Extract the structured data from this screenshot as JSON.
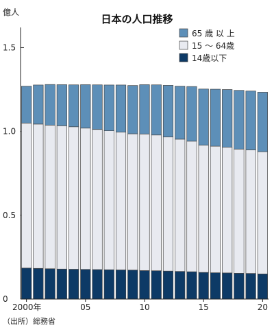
{
  "chart_data": {
    "type": "bar",
    "stacked": true,
    "title": "日本の人口推移",
    "ylabel": "億人",
    "xlabel": "",
    "ylim": [
      0,
      1.6
    ],
    "yticks": [
      0,
      0.5,
      1.0,
      1.5
    ],
    "ytick_labels": [
      "0",
      "0.5",
      "1.0",
      "1.5"
    ],
    "x": [
      2000,
      2001,
      2002,
      2003,
      2004,
      2005,
      2006,
      2007,
      2008,
      2009,
      2010,
      2011,
      2012,
      2013,
      2014,
      2015,
      2016,
      2017,
      2018,
      2019,
      2020
    ],
    "xtick_labels": [
      {
        "x": 2000,
        "label": "2000年"
      },
      {
        "x": 2005,
        "label": "05"
      },
      {
        "x": 2010,
        "label": "10"
      },
      {
        "x": 2015,
        "label": "15"
      },
      {
        "x": 2020,
        "label": "20"
      }
    ],
    "series": [
      {
        "name": "14歳以下",
        "color": "#0d3a66",
        "values": [
          0.185,
          0.183,
          0.181,
          0.179,
          0.178,
          0.177,
          0.176,
          0.175,
          0.174,
          0.173,
          0.17,
          0.169,
          0.167,
          0.165,
          0.163,
          0.159,
          0.157,
          0.156,
          0.154,
          0.153,
          0.15
        ]
      },
      {
        "name": "15 ～ 64歳",
        "color": "#e8eaf0",
        "values": [
          0.865,
          0.861,
          0.857,
          0.855,
          0.85,
          0.843,
          0.836,
          0.829,
          0.822,
          0.813,
          0.815,
          0.81,
          0.8,
          0.789,
          0.779,
          0.759,
          0.755,
          0.75,
          0.741,
          0.737,
          0.729
        ]
      },
      {
        "name": "65 歳 以 上",
        "color": "#5d8fb8",
        "values": [
          0.22,
          0.233,
          0.242,
          0.245,
          0.25,
          0.259,
          0.266,
          0.273,
          0.281,
          0.288,
          0.294,
          0.299,
          0.308,
          0.316,
          0.326,
          0.335,
          0.34,
          0.344,
          0.35,
          0.351,
          0.355
        ]
      }
    ],
    "legend_position": "top-right",
    "grid": false
  },
  "source_note": "（出所）総務省"
}
